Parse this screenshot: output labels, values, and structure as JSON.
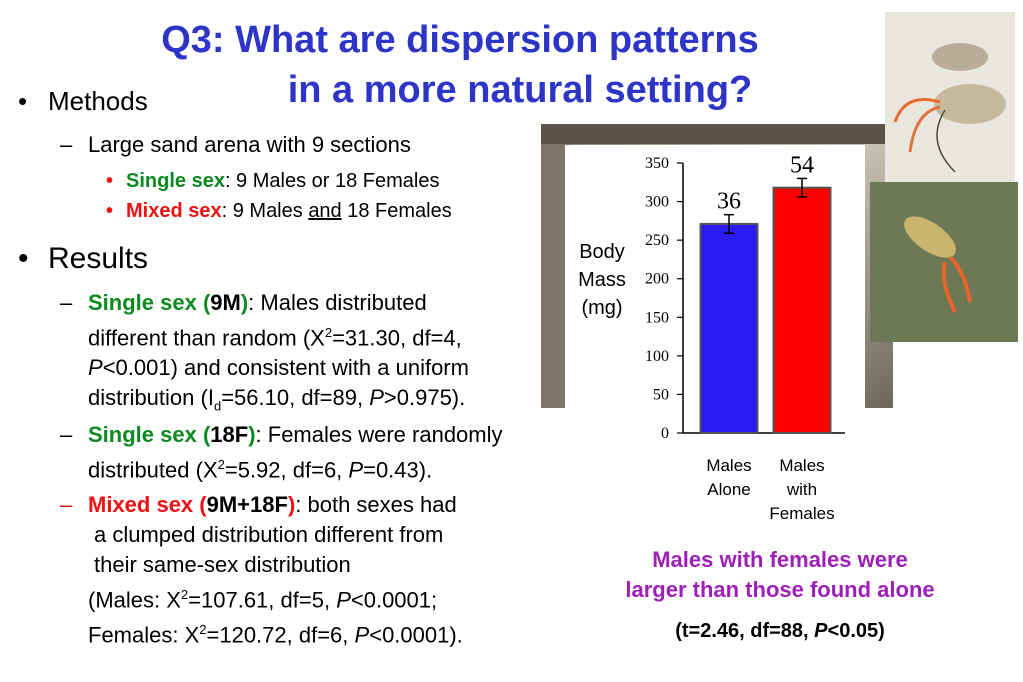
{
  "title": {
    "line1": "Q3: What are dispersion patterns",
    "line2": "in a more natural setting?"
  },
  "methods": {
    "heading": "Methods",
    "arena": "Large sand arena with 9 sections",
    "single_label": "Single sex",
    "single_text": ": 9 Males or 18 Females",
    "mixed_label": "Mixed sex",
    "mixed_text_a": ": 9 Males ",
    "mixed_and": "and",
    "mixed_text_b": " 18 Females"
  },
  "results": {
    "heading": "Results",
    "r1_label_a": "Single sex (",
    "r1_label_n": "9M",
    "r1_label_b": ")",
    "r1_l1": ": Males distributed",
    "r1_l2a": "different than random (X",
    "r1_sup": "2",
    "r1_l2b": "=31.30, df=4,",
    "r1_l3a": "P",
    "r1_l3b": "<0.001) and consistent with a uniform",
    "r1_l4a": "distribution (I",
    "r1_l4sub": "d",
    "r1_l4b": "=56.10, df=89, ",
    "r1_l4p": "P",
    "r1_l4c": ">0.975).",
    "r2_label_a": "Single sex (",
    "r2_label_n": "18F",
    "r2_label_b": ")",
    "r2_l1": ": Females were randomly",
    "r2_l2a": "distributed (X",
    "r2_sup": "2",
    "r2_l2b": "=5.92, df=6, ",
    "r2_l2p": "P",
    "r2_l2c": "=0.43).",
    "r3_label_a": "Mixed sex (",
    "r3_label_n": "9M+18F",
    "r3_label_b": ")",
    "r3_l1": ": both sexes had",
    "r3_l2": "a clumped distribution different from",
    "r3_l3": "their same-sex distribution",
    "r3_l4a": "(Males: X",
    "r3_l4sup": "2",
    "r3_l4b": "=107.61, df=5, ",
    "r3_l4p": "P",
    "r3_l4c": "<0.0001;",
    "r3_l5a": "Females: X",
    "r3_l5sup": "2",
    "r3_l5b": "=120.72, df=6, ",
    "r3_l5p": "P",
    "r3_l5c": "<0.0001)."
  },
  "caption": {
    "line1": "Males with females were",
    "line2": "larger than those found alone",
    "stat_a": "(t=2.46, df=88, ",
    "stat_p": "P",
    "stat_b": "<0.05)"
  },
  "chart_data": {
    "type": "bar",
    "categories": [
      "Males Alone",
      "Males with Females"
    ],
    "category_lines": [
      [
        "Males",
        "Alone"
      ],
      [
        "Males",
        "with",
        "Females"
      ]
    ],
    "values": [
      271,
      318
    ],
    "errors": [
      12,
      12
    ],
    "counts": [
      "36",
      "54"
    ],
    "colors": [
      "#2a1cf0",
      "#ff0000"
    ],
    "ylabel_lines": [
      "Body",
      "Mass",
      "(mg)"
    ],
    "ylim": [
      0,
      350
    ],
    "yticks": [
      0,
      50,
      100,
      150,
      200,
      250,
      300,
      350
    ]
  }
}
